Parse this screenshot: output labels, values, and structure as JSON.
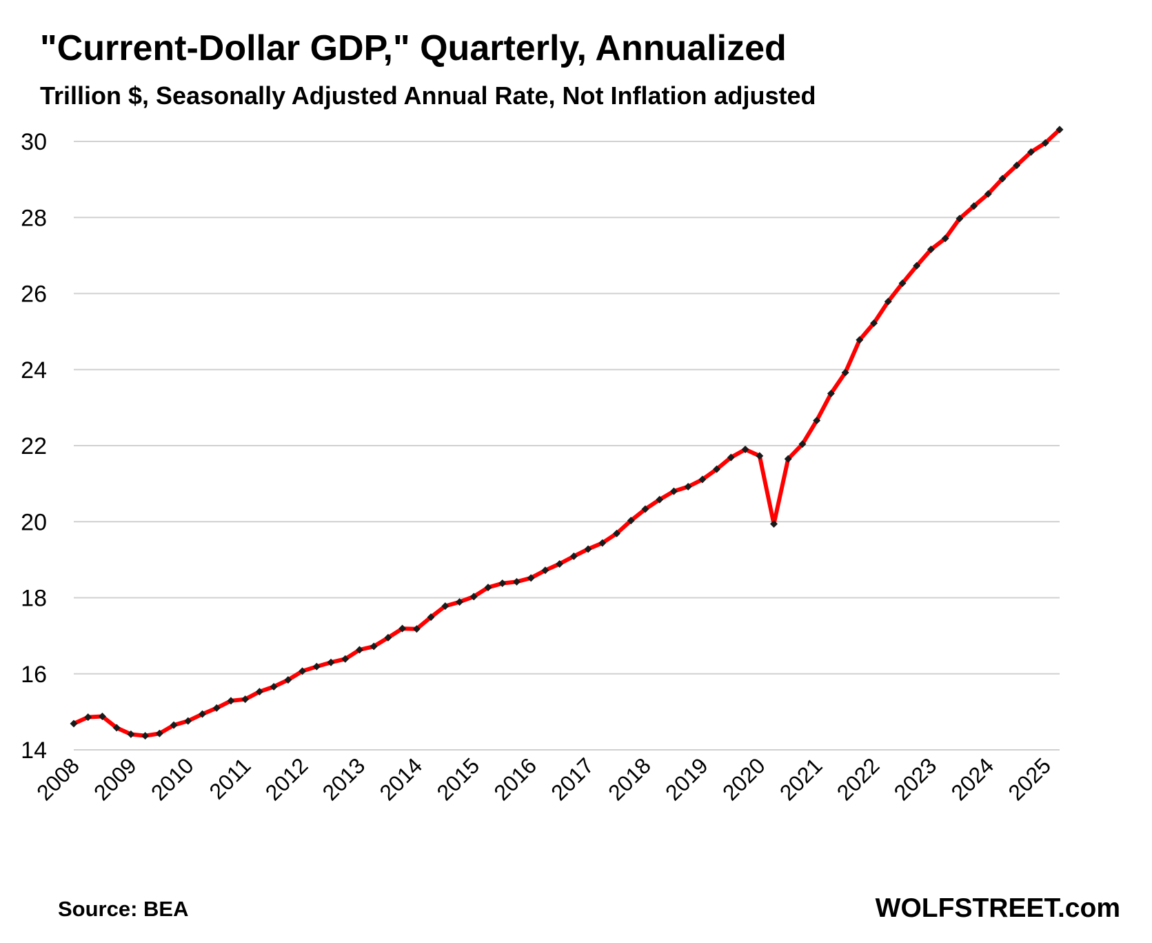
{
  "header": {
    "title": "\"Current-Dollar GDP,\" Quarterly, Annualized",
    "subtitle": "Trillion $, Seasonally Adjusted Annual Rate, Not Inflation adjusted"
  },
  "footer": {
    "source": "Source: BEA",
    "brand": "WOLFSTREET.com"
  },
  "colors": {
    "line": "#ff0000",
    "marker": "#1a1a1a",
    "grid": "#d0d0d0"
  },
  "chart_data": {
    "type": "line",
    "title": "\"Current-Dollar GDP,\" Quarterly, Annualized",
    "subtitle": "Trillion $, Seasonally Adjusted Annual Rate, Not Inflation adjusted",
    "xlabel": "",
    "ylabel": "",
    "ylim": [
      14,
      30
    ],
    "yticks": [
      14,
      16,
      18,
      20,
      22,
      24,
      26,
      28,
      30
    ],
    "xticks": [
      "2008",
      "2009",
      "2010",
      "2011",
      "2012",
      "2013",
      "2014",
      "2015",
      "2016",
      "2017",
      "2018",
      "2019",
      "2020",
      "2021",
      "2022",
      "2023",
      "2024",
      "2025"
    ],
    "grid": true,
    "legend": "none",
    "series": [
      {
        "x": [
          "2008 Q1",
          "2008 Q2",
          "2008 Q3",
          "2008 Q4",
          "2009 Q1",
          "2009 Q2",
          "2009 Q3",
          "2009 Q4",
          "2010 Q1",
          "2010 Q2",
          "2010 Q3",
          "2010 Q4",
          "2011 Q1",
          "2011 Q2",
          "2011 Q3",
          "2011 Q4",
          "2012 Q1",
          "2012 Q2",
          "2012 Q3",
          "2012 Q4",
          "2013 Q1",
          "2013 Q2",
          "2013 Q3",
          "2013 Q4",
          "2014 Q1",
          "2014 Q2",
          "2014 Q3",
          "2014 Q4",
          "2015 Q1",
          "2015 Q2",
          "2015 Q3",
          "2015 Q4",
          "2016 Q1",
          "2016 Q2",
          "2016 Q3",
          "2016 Q4",
          "2017 Q1",
          "2017 Q2",
          "2017 Q3",
          "2017 Q4",
          "2018 Q1",
          "2018 Q2",
          "2018 Q3",
          "2018 Q4",
          "2019 Q1",
          "2019 Q2",
          "2019 Q3",
          "2019 Q4",
          "2020 Q1",
          "2020 Q2",
          "2020 Q3",
          "2020 Q4",
          "2021 Q1",
          "2021 Q2",
          "2021 Q3",
          "2021 Q4",
          "2022 Q1",
          "2022 Q2",
          "2022 Q3",
          "2022 Q4",
          "2023 Q1",
          "2023 Q2",
          "2023 Q3",
          "2023 Q4",
          "2024 Q1",
          "2024 Q2",
          "2024 Q3",
          "2024 Q4",
          "2025 Q1",
          "2025 Q2"
        ],
        "values": [
          14.69,
          14.86,
          14.88,
          14.58,
          14.41,
          14.37,
          14.43,
          14.65,
          14.76,
          14.94,
          15.1,
          15.29,
          15.33,
          15.53,
          15.66,
          15.84,
          16.07,
          16.19,
          16.3,
          16.39,
          16.63,
          16.72,
          16.95,
          17.19,
          17.18,
          17.49,
          17.78,
          17.89,
          18.03,
          18.27,
          18.38,
          18.42,
          18.52,
          18.72,
          18.89,
          19.09,
          19.28,
          19.44,
          19.69,
          20.03,
          20.33,
          20.58,
          20.8,
          20.92,
          21.11,
          21.38,
          21.69,
          21.9,
          21.73,
          19.94,
          21.65,
          22.04,
          22.66,
          23.37,
          23.92,
          24.78,
          25.22,
          25.79,
          26.27,
          26.73,
          27.16,
          27.45,
          27.97,
          28.3,
          28.62,
          29.02,
          29.37,
          29.72,
          29.96,
          30.31
        ]
      }
    ]
  }
}
